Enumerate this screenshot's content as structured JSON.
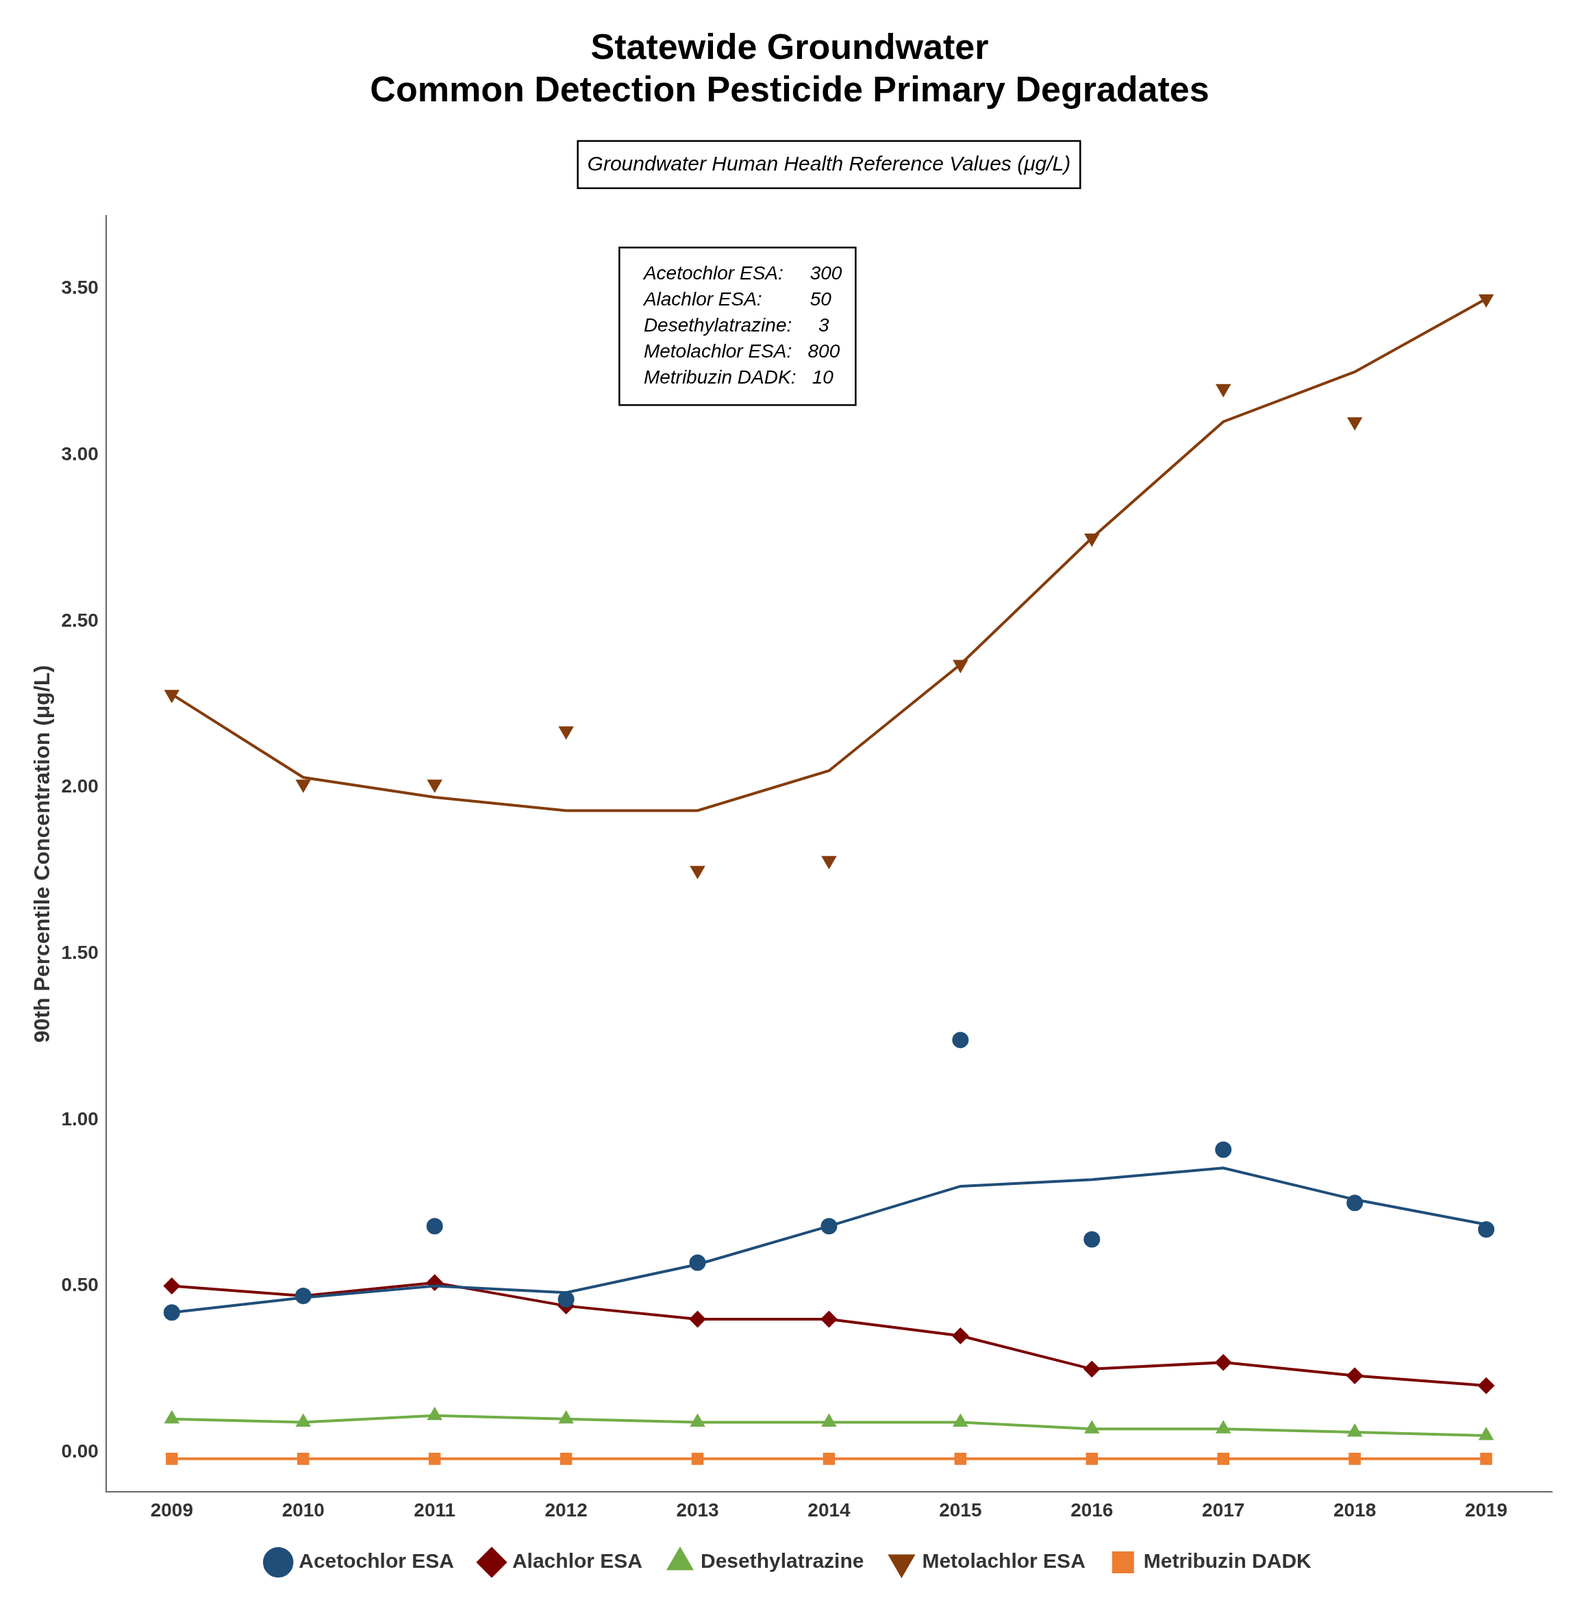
{
  "chart_data": {
    "type": "line",
    "title": [
      "Statewide Groundwater",
      "Common Detection Pesticide Primary Degradates"
    ],
    "annotations": [
      {
        "text": "Groundwater Human Health Reference Values (μg/L)"
      },
      {
        "text": [
          "  Acetochlor ESA:     300",
          "  Alachlor ESA:         50",
          "  Desethylatrazine:     3",
          "  Metolachlor ESA:   800",
          "  Metribuzin DADK:   10"
        ]
      }
    ],
    "y_label": "90th Percentile Concentration (μg/L)",
    "x": [
      2009,
      2010,
      2011,
      2012,
      2013,
      2014,
      2015,
      2016,
      2017,
      2018,
      2019
    ],
    "xlim": [
      2008.5,
      2019.5
    ],
    "xticks": [
      2009,
      2010,
      2011,
      2012,
      2013,
      2014,
      2015,
      2016,
      2017,
      2018,
      2019
    ],
    "ylim": [
      -0.12,
      3.72
    ],
    "yticks": [
      {
        "value": 0.0,
        "label": "0.00"
      },
      {
        "value": 0.5,
        "label": "0.50"
      },
      {
        "value": 1.0,
        "label": "1.00"
      },
      {
        "value": 1.5,
        "label": "1.50"
      },
      {
        "value": 2.0,
        "label": "2.00"
      },
      {
        "value": 2.5,
        "label": "2.50"
      },
      {
        "value": 3.0,
        "label": "3.00"
      },
      {
        "value": 3.5,
        "label": "3.50"
      }
    ],
    "grid": false,
    "legend": "bottom",
    "series": [
      {
        "name": "Acetochlor ESA",
        "color": "#1F4E79",
        "marker": "circle",
        "values": [
          0.42,
          0.47,
          0.68,
          0.46,
          0.57,
          0.68,
          1.24,
          0.64,
          0.91,
          0.75,
          0.67
        ],
        "line_values": [
          0.42,
          0.465,
          0.5,
          0.48,
          0.565,
          0.68,
          0.8,
          0.82,
          0.855,
          0.76,
          0.685
        ]
      },
      {
        "name": "Alachlor ESA",
        "color": "#7B0000",
        "marker": "diamond",
        "values": [
          0.5,
          0.47,
          0.51,
          0.44,
          0.4,
          0.4,
          0.35,
          0.25,
          0.27,
          0.23,
          0.2
        ],
        "line_values": [
          0.5,
          0.47,
          0.51,
          0.44,
          0.4,
          0.4,
          0.35,
          0.25,
          0.27,
          0.23,
          0.2
        ]
      },
      {
        "name": "Desethylatrazine",
        "color": "#70AD47",
        "marker": "triangle_up",
        "values": [
          0.1,
          0.09,
          0.11,
          0.1,
          0.09,
          0.09,
          0.09,
          0.07,
          0.07,
          0.06,
          0.05
        ],
        "line_values": [
          0.1,
          0.09,
          0.11,
          0.1,
          0.09,
          0.09,
          0.09,
          0.07,
          0.07,
          0.06,
          0.05
        ]
      },
      {
        "name": "Metolachlor ESA",
        "color": "#843C0C",
        "marker": "triangle_down",
        "values": [
          2.28,
          2.01,
          2.01,
          2.17,
          1.75,
          1.78,
          2.37,
          2.75,
          3.2,
          3.1,
          3.47
        ],
        "line_values": [
          2.28,
          2.03,
          1.97,
          1.93,
          1.93,
          2.05,
          2.37,
          2.75,
          3.1,
          3.25,
          3.47
        ]
      },
      {
        "name": "Metribuzin DADK",
        "color": "#ED7D31",
        "marker": "square",
        "values": [
          -0.02,
          -0.02,
          -0.02,
          -0.02,
          -0.02,
          -0.02,
          -0.02,
          -0.02,
          -0.02,
          -0.02,
          -0.02
        ],
        "line_values": [
          -0.02,
          -0.02,
          -0.02,
          -0.02,
          -0.02,
          -0.02,
          -0.02,
          -0.02,
          -0.02,
          -0.02,
          -0.02
        ]
      }
    ]
  }
}
